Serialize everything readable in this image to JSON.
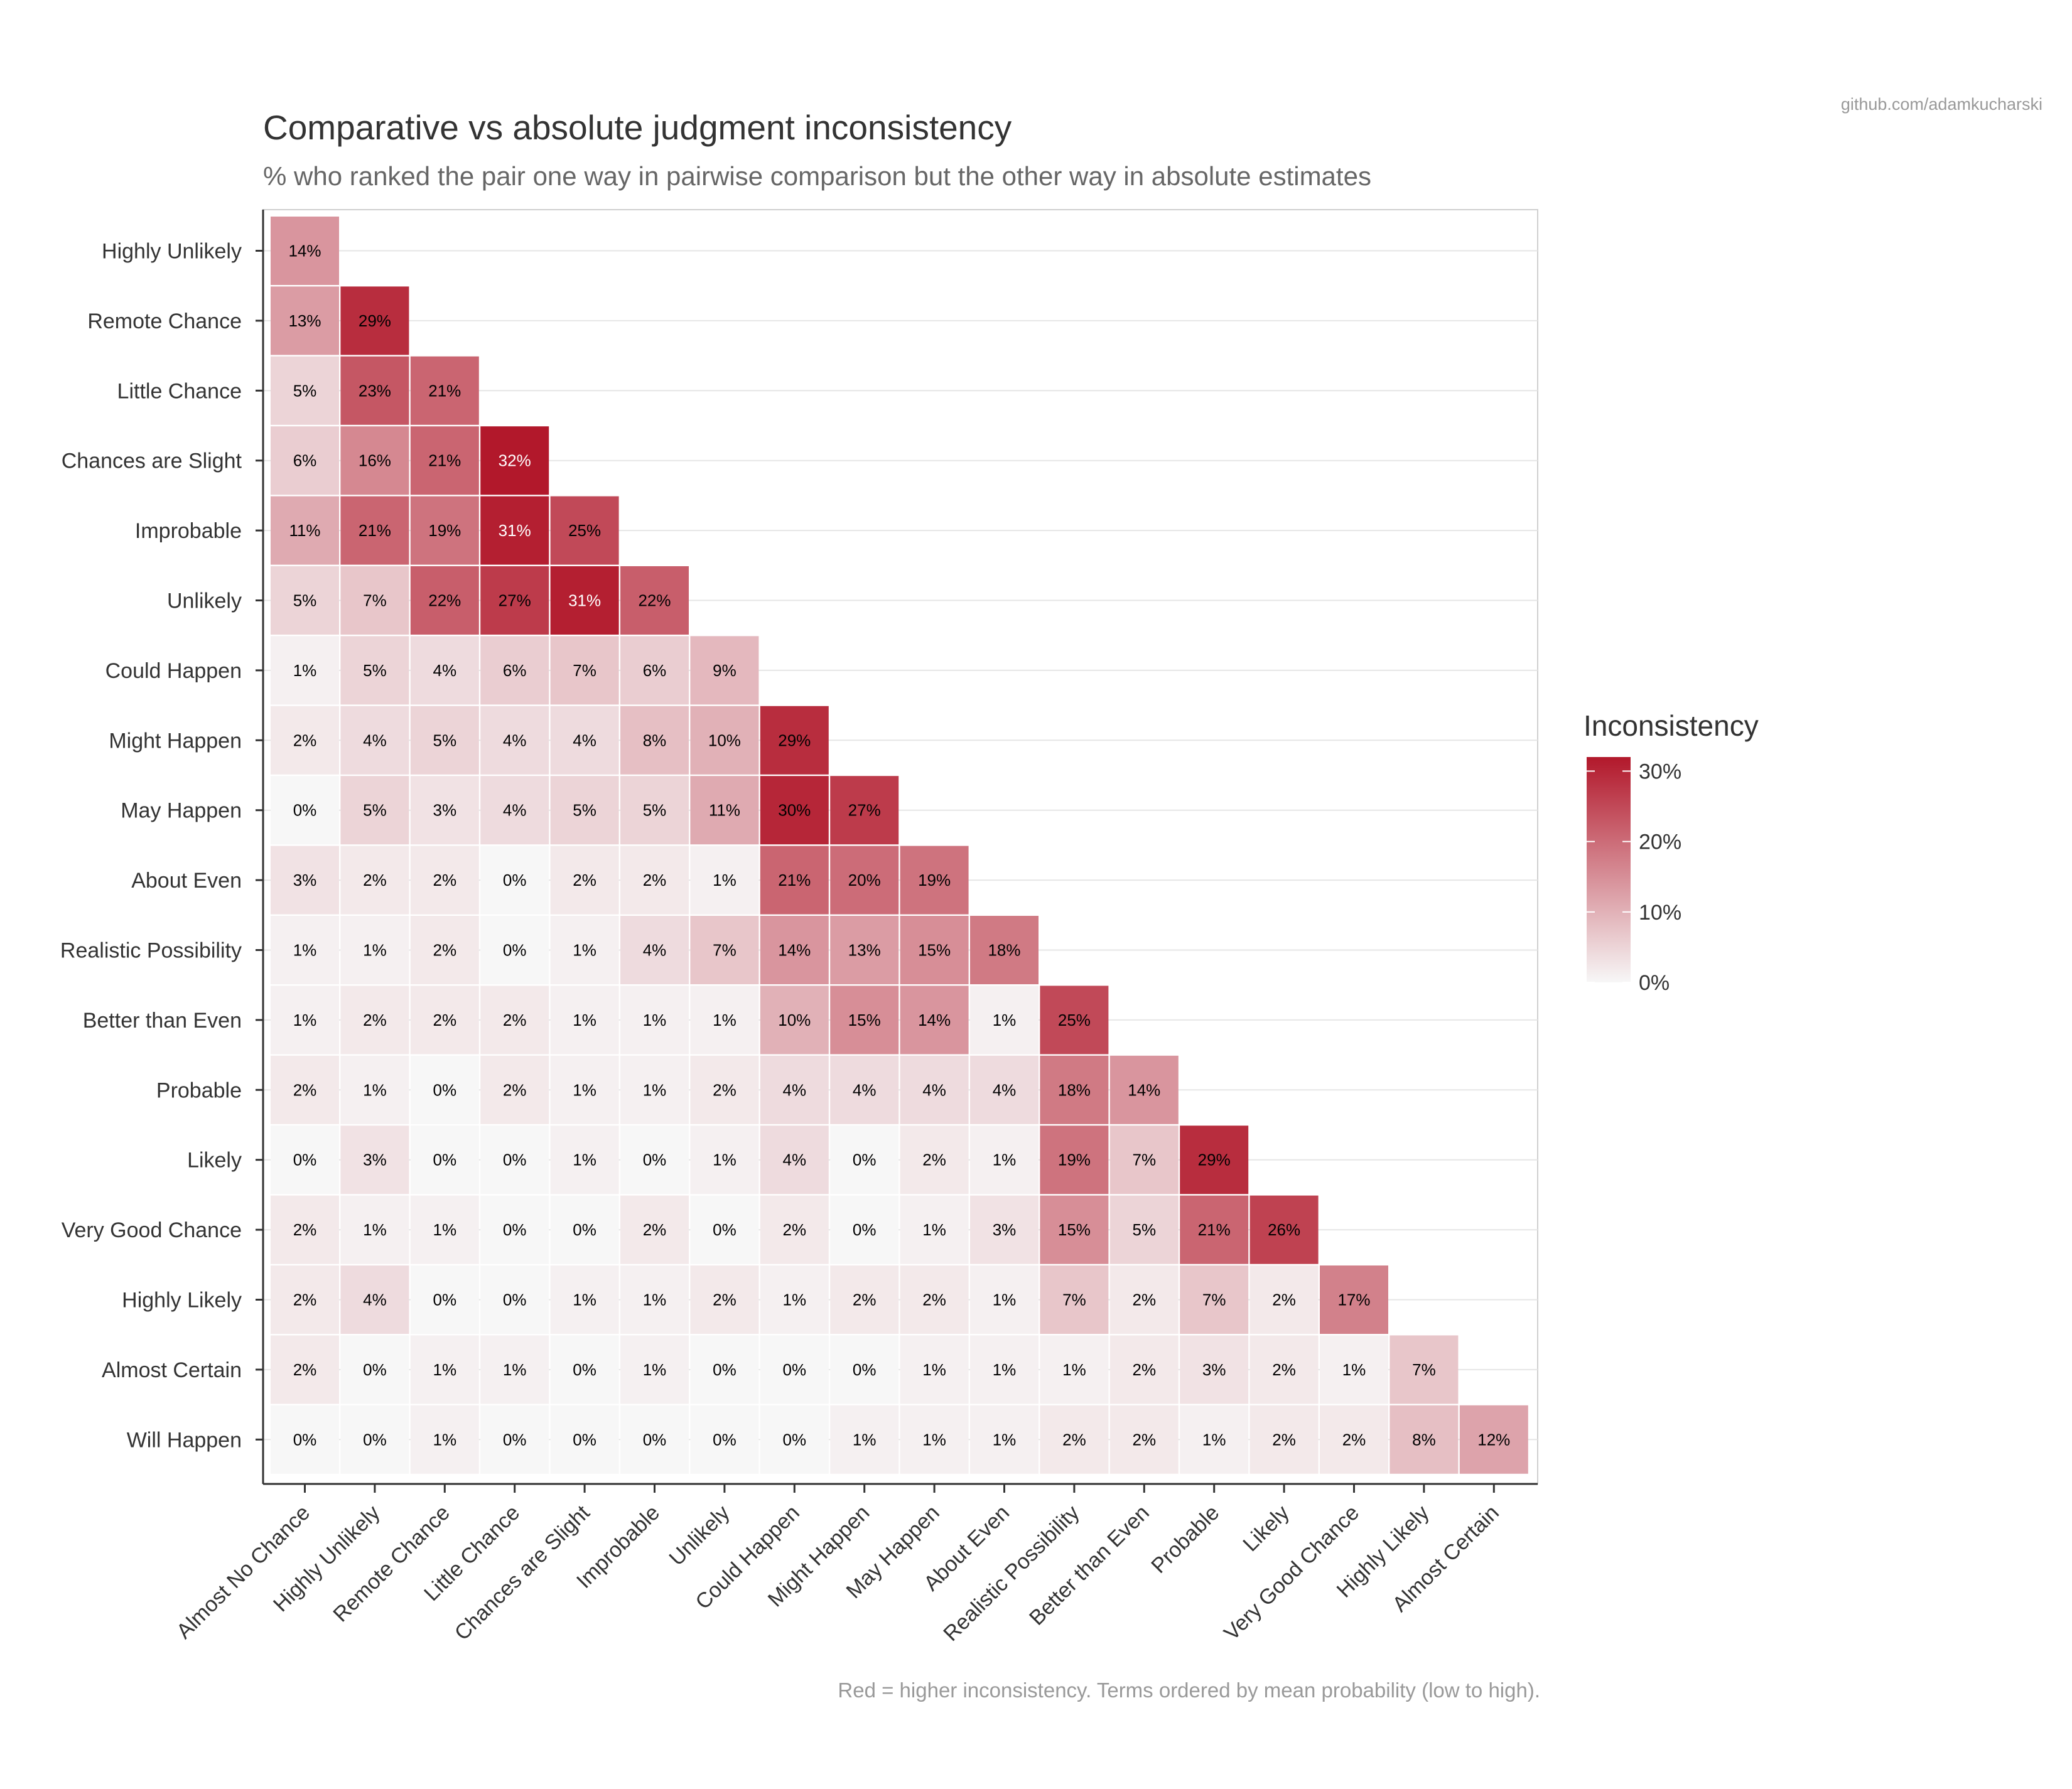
{
  "watermark": "github.com/adamkucharski",
  "chart_data": {
    "type": "heatmap",
    "title": "Comparative vs absolute judgment inconsistency",
    "subtitle": "% who ranked the pair one way in pairwise comparison but the other way in absolute estimates",
    "caption": "Red = higher inconsistency. Terms ordered by mean probability (low to high).",
    "xlabel": "",
    "ylabel": "",
    "x_categories": [
      "Almost No Chance",
      "Highly Unlikely",
      "Remote Chance",
      "Little Chance",
      "Chances are Slight",
      "Improbable",
      "Unlikely",
      "Could Happen",
      "Might Happen",
      "May Happen",
      "About Even",
      "Realistic Possibility",
      "Better than Even",
      "Probable",
      "Likely",
      "Very Good Chance",
      "Highly Likely",
      "Almost Certain"
    ],
    "y_categories": [
      "Highly Unlikely",
      "Remote Chance",
      "Little Chance",
      "Chances are Slight",
      "Improbable",
      "Unlikely",
      "Could Happen",
      "Might Happen",
      "May Happen",
      "About Even",
      "Realistic Possibility",
      "Better than Even",
      "Probable",
      "Likely",
      "Very Good Chance",
      "Highly Likely",
      "Almost Certain",
      "Will Happen"
    ],
    "values": [
      [
        14
      ],
      [
        13,
        29
      ],
      [
        5,
        23,
        21
      ],
      [
        6,
        16,
        21,
        32
      ],
      [
        11,
        21,
        19,
        31,
        25
      ],
      [
        5,
        7,
        22,
        27,
        31,
        22
      ],
      [
        1,
        5,
        4,
        6,
        7,
        6,
        9
      ],
      [
        2,
        4,
        5,
        4,
        4,
        8,
        10,
        29
      ],
      [
        0,
        5,
        3,
        4,
        5,
        5,
        11,
        30,
        27
      ],
      [
        3,
        2,
        2,
        0,
        2,
        2,
        1,
        21,
        20,
        19
      ],
      [
        1,
        1,
        2,
        0,
        1,
        4,
        7,
        14,
        13,
        15,
        18
      ],
      [
        1,
        2,
        2,
        2,
        1,
        1,
        1,
        10,
        15,
        14,
        1,
        25
      ],
      [
        2,
        1,
        0,
        2,
        1,
        1,
        2,
        4,
        4,
        4,
        4,
        18,
        14
      ],
      [
        0,
        3,
        0,
        0,
        1,
        0,
        1,
        4,
        0,
        2,
        1,
        19,
        7,
        29
      ],
      [
        2,
        1,
        1,
        0,
        0,
        2,
        0,
        2,
        0,
        1,
        3,
        15,
        5,
        21,
        26
      ],
      [
        2,
        4,
        0,
        0,
        1,
        1,
        2,
        1,
        2,
        2,
        1,
        7,
        2,
        7,
        2,
        17
      ],
      [
        2,
        0,
        1,
        1,
        0,
        1,
        0,
        0,
        0,
        1,
        1,
        1,
        2,
        3,
        2,
        1,
        7
      ],
      [
        0,
        0,
        1,
        0,
        0,
        0,
        0,
        0,
        1,
        1,
        1,
        2,
        2,
        1,
        2,
        2,
        8,
        12
      ]
    ],
    "value_suffix": "%",
    "legend": {
      "title": "Inconsistency",
      "ticks": [
        0,
        10,
        20,
        30
      ],
      "tick_labels": [
        "0%",
        "10%",
        "20%",
        "30%"
      ],
      "range": [
        0,
        32
      ],
      "placement": "right"
    },
    "colors": {
      "low": "#f7f7f7",
      "high": "#b2182b"
    },
    "grid": true
  }
}
